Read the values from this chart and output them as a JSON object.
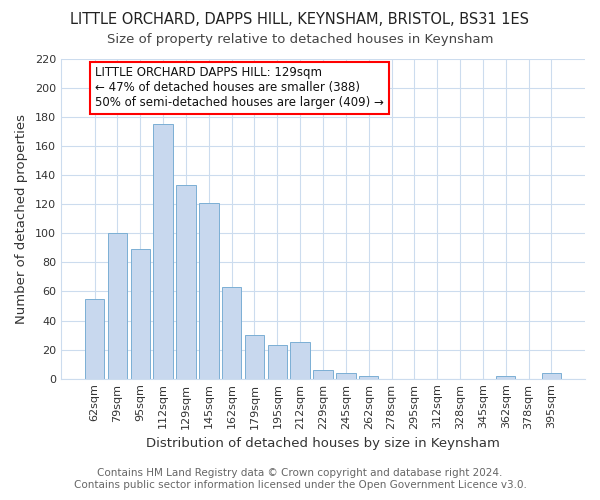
{
  "title": "LITTLE ORCHARD, DAPPS HILL, KEYNSHAM, BRISTOL, BS31 1ES",
  "subtitle": "Size of property relative to detached houses in Keynsham",
  "xlabel": "Distribution of detached houses by size in Keynsham",
  "ylabel": "Number of detached properties",
  "footer_line1": "Contains HM Land Registry data © Crown copyright and database right 2024.",
  "footer_line2": "Contains public sector information licensed under the Open Government Licence v3.0.",
  "bar_labels": [
    "62sqm",
    "79sqm",
    "95sqm",
    "112sqm",
    "129sqm",
    "145sqm",
    "162sqm",
    "179sqm",
    "195sqm",
    "212sqm",
    "229sqm",
    "245sqm",
    "262sqm",
    "278sqm",
    "295sqm",
    "312sqm",
    "328sqm",
    "345sqm",
    "362sqm",
    "378sqm",
    "395sqm"
  ],
  "bar_values": [
    55,
    100,
    89,
    175,
    133,
    121,
    63,
    30,
    23,
    25,
    6,
    4,
    2,
    0,
    0,
    0,
    0,
    0,
    2,
    0,
    4
  ],
  "bar_color": "#c8d8ee",
  "bar_edge_color": "#7bafd4",
  "ylim": [
    0,
    220
  ],
  "yticks": [
    0,
    20,
    40,
    60,
    80,
    100,
    120,
    140,
    160,
    180,
    200,
    220
  ],
  "annotation_title": "LITTLE ORCHARD DAPPS HILL: 129sqm",
  "annotation_line1": "← 47% of detached houses are smaller (388)",
  "annotation_line2": "50% of semi-detached houses are larger (409) →",
  "highlight_index": 4,
  "background_color": "#ffffff",
  "grid_color": "#ccdcee",
  "title_fontsize": 10.5,
  "subtitle_fontsize": 9.5,
  "axis_label_fontsize": 9.5,
  "tick_fontsize": 8,
  "annotation_fontsize": 8.5,
  "footer_fontsize": 7.5
}
